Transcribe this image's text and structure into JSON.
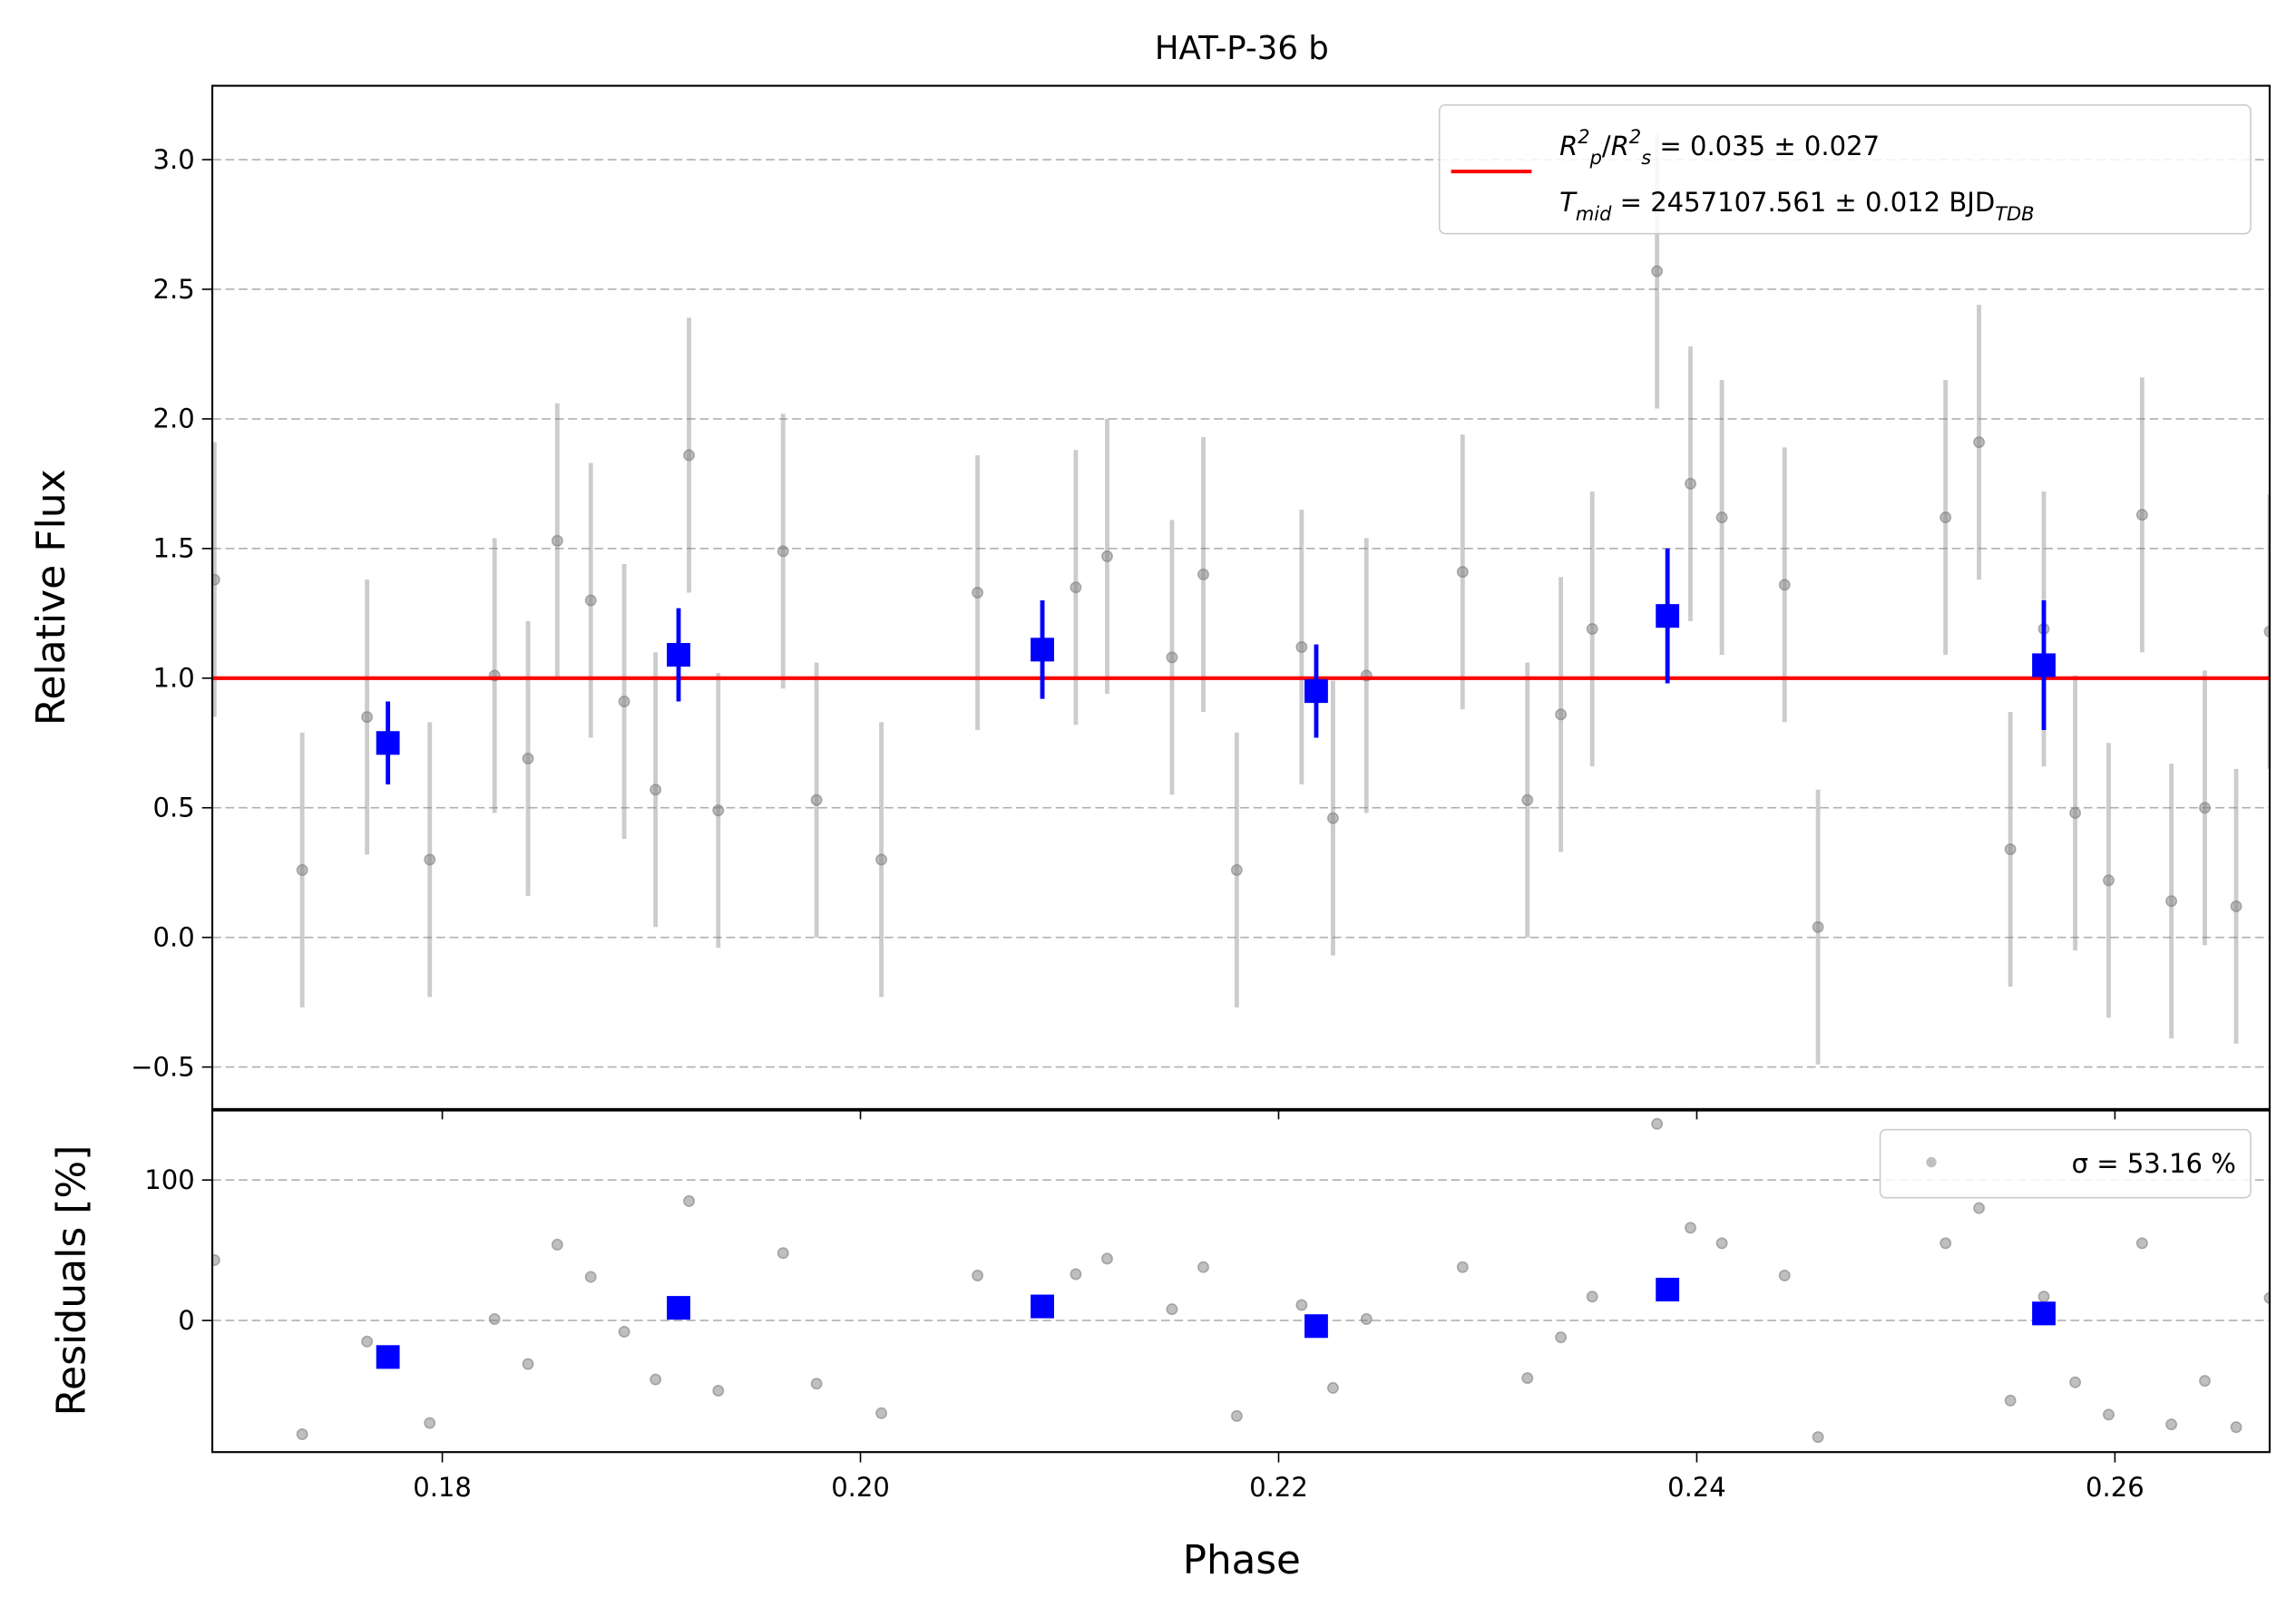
{
  "chart_data": [
    {
      "type": "errorbar",
      "title": "HAT-P-36 b",
      "ylabel": "Relative Flux",
      "xlim": [
        0.169,
        0.2674
      ],
      "ylim": [
        -0.662,
        3.285
      ],
      "yticks": [
        {
          "value": -0.5,
          "label": "−0.5"
        },
        {
          "value": 0,
          "label": "0.0"
        },
        0.5,
        {
          "value": 1,
          "label": "1.0"
        },
        1.5,
        {
          "value": 2,
          "label": "2.0"
        },
        2.5,
        {
          "value": 3,
          "label": "3.0"
        }
      ],
      "grid": true,
      "legend": "upper right",
      "series": [
        {
          "color": "#808080",
          "marker": "circle",
          "x": [
            0.1691,
            0.1733,
            0.1764,
            0.1794,
            0.1825,
            0.1841,
            0.1855,
            0.1871,
            0.1887,
            0.1902,
            0.1918,
            0.1932,
            0.1963,
            0.1979,
            0.201,
            0.2056,
            0.2103,
            0.2118,
            0.2149,
            0.2164,
            0.218,
            0.2211,
            0.2226,
            0.2242,
            0.2288,
            0.2319,
            0.2335,
            0.235,
            0.2381,
            0.2397,
            0.2412,
            0.2442,
            0.2458,
            0.2519,
            0.2535,
            0.255,
            0.2566,
            0.2581,
            0.2597,
            0.2613,
            0.2627,
            0.2643,
            0.2658,
            0.2674
          ],
          "values": [
            1.38,
            0.26,
            0.85,
            0.3,
            1.01,
            0.69,
            1.53,
            1.3,
            0.91,
            0.57,
            1.86,
            0.49,
            1.49,
            0.53,
            0.3,
            1.33,
            1.35,
            1.47,
            1.08,
            1.4,
            0.26,
            1.12,
            0.46,
            1.01,
            1.41,
            0.53,
            0.86,
            1.19,
            2.57,
            1.75,
            1.62,
            1.36,
            0.04,
            1.62,
            1.91,
            0.34,
            1.19,
            0.48,
            0.22,
            1.63,
            0.14,
            0.5,
            0.12,
            1.18
          ],
          "yerr": [
            0.53,
            0.53,
            0.53,
            0.53,
            0.53,
            0.53,
            0.53,
            0.53,
            0.53,
            0.53,
            0.53,
            0.53,
            0.53,
            0.53,
            0.53,
            0.53,
            0.53,
            0.53,
            0.53,
            0.53,
            0.53,
            0.53,
            0.53,
            0.53,
            0.53,
            0.53,
            0.53,
            0.53,
            0.53,
            0.53,
            0.53,
            0.53,
            0.53,
            0.53,
            0.53,
            0.53,
            0.53,
            0.53,
            0.53,
            0.53,
            0.53,
            0.53,
            0.53,
            0.53
          ]
        },
        {
          "name": [
            [
              {
                "text": "R",
                "style": "italic"
              },
              {
                "text": "2",
                "style": "sup"
              },
              {
                "text": "p",
                "style": "sub"
              },
              {
                "text": "/"
              },
              {
                "text": "R",
                "style": "italic"
              },
              {
                "text": "2",
                "style": "sup"
              },
              {
                "text": "s",
                "style": "sub"
              },
              {
                "text": " = 0.035 ± 0.027"
              }
            ],
            [
              {
                "text": "T",
                "style": "italic"
              },
              {
                "text": "mid",
                "style": "sub"
              },
              {
                "text": " = 2457107.561 ± 0.012 BJD"
              },
              {
                "text": "TDB",
                "style": "sub"
              }
            ]
          ],
          "color": "#ff0000",
          "x": [
            0.169,
            0.2674
          ],
          "values": [
            1,
            1
          ]
        },
        {
          "color": "#0000ff",
          "marker": "square",
          "x": [
            0.1774,
            0.1913,
            0.2087,
            0.2218,
            0.2386,
            0.2566
          ],
          "values": [
            0.75,
            1.09,
            1.11,
            0.95,
            1.24,
            1.05
          ],
          "yerr": [
            0.16,
            0.18,
            0.19,
            0.18,
            0.26,
            0.25
          ]
        }
      ]
    },
    {
      "type": "scatter",
      "ylabel": "Residuals [%]",
      "xlabel": "Phase",
      "xlim": [
        0.169,
        0.2674
      ],
      "ylim": [
        -93.7,
        149.5
      ],
      "xticks": [
        0.18,
        {
          "value": 0.2,
          "label": "0.20"
        },
        0.22,
        0.24,
        0.26
      ],
      "yticks": [
        0,
        100
      ],
      "grid": true,
      "legend": "upper right",
      "series": [
        {
          "name": "σ = 53.16 %",
          "color": "#808080",
          "marker": "circle",
          "x": [
            0.1691,
            0.1733,
            0.1764,
            0.1794,
            0.1825,
            0.1841,
            0.1855,
            0.1871,
            0.1887,
            0.1902,
            0.1918,
            0.1932,
            0.1963,
            0.1979,
            0.201,
            0.2056,
            0.2103,
            0.2118,
            0.2149,
            0.2164,
            0.218,
            0.2211,
            0.2226,
            0.2242,
            0.2288,
            0.2319,
            0.2335,
            0.235,
            0.2381,
            0.2397,
            0.2412,
            0.2442,
            0.2458,
            0.2519,
            0.2535,
            0.255,
            0.2566,
            0.2581,
            0.2597,
            0.2613,
            0.2627,
            0.2643,
            0.2658,
            0.2674
          ],
          "values": [
            43,
            -81,
            -15,
            -73,
            1,
            -31,
            54,
            31,
            -8,
            -42,
            85,
            -50,
            48,
            -45,
            -66,
            32,
            33,
            44,
            8,
            38,
            -68,
            11,
            -48,
            1,
            38,
            -41,
            -12,
            17,
            140,
            66,
            55,
            32,
            -83,
            55,
            80,
            -57,
            17,
            -44,
            -67,
            55,
            -74,
            -43,
            -76,
            16
          ]
        },
        {
          "color": "#0000ff",
          "marker": "square",
          "x": [
            0.1774,
            0.1913,
            0.2087,
            0.2218,
            0.2386,
            0.2566
          ],
          "values": [
            -26,
            9,
            10,
            -4,
            22,
            5
          ]
        }
      ]
    }
  ]
}
